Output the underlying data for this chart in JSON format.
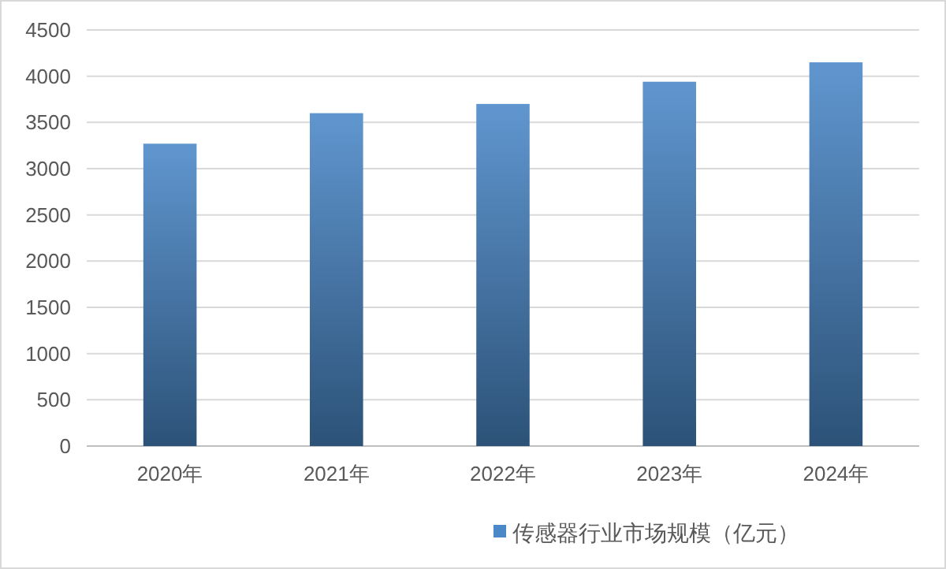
{
  "chart_data": {
    "type": "bar",
    "categories": [
      "2020年",
      "2021年",
      "2022年",
      "2023年",
      "2024年"
    ],
    "series": [
      {
        "name": "传感器行业市场规模（亿元）",
        "color": "#4a88c8",
        "values": [
          3270,
          3600,
          3700,
          3940,
          4150
        ]
      }
    ],
    "ylim": [
      0,
      4500
    ],
    "yticks": [
      0,
      500,
      1000,
      1500,
      2000,
      2500,
      3000,
      3500,
      4000,
      4500
    ],
    "grid": "y",
    "legend": "bottom"
  }
}
